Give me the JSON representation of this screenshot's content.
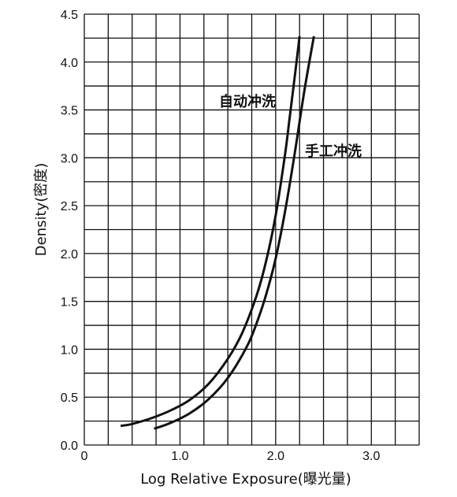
{
  "chart_data": {
    "type": "line",
    "title": "",
    "xlabel": "Log Relative Exposure(曝光量)",
    "ylabel": "Density(密度)",
    "xlim": [
      0,
      3.5
    ],
    "ylim": [
      0,
      4.5
    ],
    "grid": true,
    "x_ticks": [
      "0",
      "1.0",
      "2.0",
      "3.0"
    ],
    "y_ticks": [
      "0.0",
      "0.5",
      "1.0",
      "1.5",
      "2.0",
      "2.5",
      "3.0",
      "3.5",
      "4.0",
      "4.5"
    ],
    "series": [
      {
        "name": "自动冲洗",
        "x": [
          0.38,
          0.5,
          0.7,
          0.9,
          1.1,
          1.3,
          1.5,
          1.65,
          1.8,
          1.9,
          2.0,
          2.1,
          2.15,
          2.2,
          2.25
        ],
        "y": [
          0.2,
          0.22,
          0.28,
          0.36,
          0.47,
          0.64,
          0.9,
          1.17,
          1.56,
          1.92,
          2.4,
          3.05,
          3.45,
          3.85,
          4.27
        ]
      },
      {
        "name": "手工冲洗",
        "x": [
          0.73,
          0.9,
          1.1,
          1.3,
          1.5,
          1.7,
          1.8,
          1.9,
          2.0,
          2.1,
          2.2,
          2.3,
          2.4
        ],
        "y": [
          0.17,
          0.23,
          0.33,
          0.48,
          0.7,
          1.03,
          1.27,
          1.57,
          1.95,
          2.45,
          3.05,
          3.7,
          4.27
        ]
      }
    ]
  }
}
